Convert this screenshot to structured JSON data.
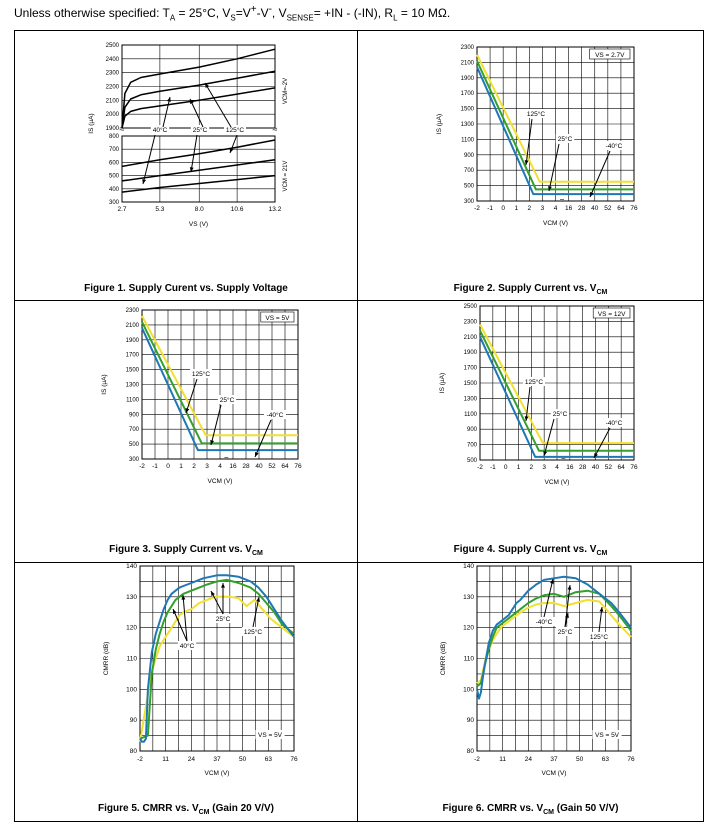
{
  "conditions": {
    "prefix": "Unless otherwise specified: T",
    "t_sub": "A",
    "t_val": " = 25°C, V",
    "s_sub": "S",
    "s_val": "=V",
    "vp": "+",
    "vm_sep": "-V",
    "vn": "-",
    "sense_sep": ", V",
    "sense_sub": "SENSE",
    "sense_val": "= +IN - (-IN), R",
    "r_sub": "L",
    "r_val": " = 10 MΩ."
  },
  "colors": {
    "blue": "#1f77b4",
    "green": "#33a02c",
    "yellow": "#f2e030",
    "black": "#000000",
    "grid": "#000000"
  },
  "figures": [
    {
      "id": "fig1",
      "caption": "Figure 1. Supply Curent vs. Supply Voltage",
      "caption_sub": ""
    },
    {
      "id": "fig2",
      "caption": "Figure 2. Supply Current vs. V",
      "caption_sub": "CM"
    },
    {
      "id": "fig3",
      "caption": "Figure 3. Supply Current vs. V",
      "caption_sub": "CM"
    },
    {
      "id": "fig4",
      "caption": "Figure 4. Supply Current vs. V",
      "caption_sub": "CM"
    },
    {
      "id": "fig5",
      "caption": "Figure 5.  CMRR vs. V",
      "caption_sub": "CM",
      "caption_tail": " (Gain 20 V/V)"
    },
    {
      "id": "fig6",
      "caption": "Figure 6. CMRR vs. V",
      "caption_sub": "CM",
      "caption_tail": " (Gain 50 V/V)"
    }
  ],
  "chart_data": [
    {
      "type": "line",
      "title": "Figure 1. Supply Curent vs. Supply Voltage",
      "xlabel": "VS (V)",
      "ylabel": "IS (µA)",
      "x_ticks": [
        "2.7",
        "5.3",
        "8.0",
        "10.6",
        "13.2"
      ],
      "xlim": [
        2.7,
        13.2
      ],
      "top_yticks": [
        "2500",
        "2400",
        "2300",
        "2200",
        "2100",
        "2000",
        "1900"
      ],
      "bottom_yticks": [
        "800",
        "700",
        "600",
        "500",
        "400",
        "300"
      ],
      "top_label": "VCM=-2V",
      "bottom_label": "VCM = 21V",
      "annotations": [
        "40°C",
        "25°C",
        "125°C"
      ],
      "series_top": [
        {
          "name": "125°C",
          "x": [
            2.7,
            2.9,
            3.3,
            4.0,
            5.3,
            8.0,
            10.6,
            13.2
          ],
          "y": [
            1900,
            2150,
            2230,
            2265,
            2290,
            2340,
            2400,
            2470
          ]
        },
        {
          "name": "25°C",
          "x": [
            2.7,
            2.9,
            3.3,
            4.0,
            5.3,
            8.0,
            10.6,
            13.2
          ],
          "y": [
            1900,
            2050,
            2110,
            2140,
            2165,
            2210,
            2260,
            2310
          ]
        },
        {
          "name": "40°C",
          "x": [
            2.7,
            2.9,
            3.3,
            4.0,
            5.3,
            8.0,
            10.6,
            13.2
          ],
          "y": [
            1900,
            1985,
            2020,
            2040,
            2060,
            2100,
            2145,
            2190
          ]
        }
      ],
      "series_bottom": [
        {
          "name": "125°C",
          "x": [
            2.7,
            5.3,
            8.0,
            10.6,
            13.2
          ],
          "y": [
            570,
            620,
            665,
            715,
            770
          ]
        },
        {
          "name": "25°C",
          "x": [
            2.7,
            5.3,
            8.0,
            10.6,
            13.2
          ],
          "y": [
            460,
            500,
            540,
            580,
            620
          ]
        },
        {
          "name": "40°C",
          "x": [
            2.7,
            5.3,
            8.0,
            10.6,
            13.2
          ],
          "y": [
            375,
            410,
            440,
            470,
            500
          ]
        }
      ]
    },
    {
      "type": "line",
      "title": "Figure 2. Supply Current vs. VCM",
      "xlabel": "VCM (V)",
      "ylabel": "IS (µA)",
      "legend": "VS = 2.7V",
      "x_ticks": [
        "-2",
        "-1",
        "0",
        "1",
        "2",
        "3",
        "4",
        "16",
        "28",
        "40",
        "52",
        "64",
        "76"
      ],
      "y_ticks": [
        "2300",
        "2100",
        "1900",
        "1700",
        "1500",
        "1300",
        "1100",
        "900",
        "700",
        "500",
        "300"
      ],
      "ylim": [
        300,
        2300
      ],
      "annotations": [
        "125°C",
        "25°C",
        "-40°C"
      ],
      "series": [
        {
          "name": "125°C",
          "color": "yellow",
          "x": [
            -2,
            2.8,
            4,
            76
          ],
          "y": [
            2200,
            550,
            550,
            550
          ]
        },
        {
          "name": "25°C",
          "color": "green",
          "x": [
            -2,
            2.5,
            4,
            76
          ],
          "y": [
            2120,
            450,
            450,
            450
          ]
        },
        {
          "name": "-40°C",
          "color": "blue",
          "x": [
            -2,
            2.3,
            4,
            76
          ],
          "y": [
            2040,
            390,
            390,
            390
          ]
        }
      ]
    },
    {
      "type": "line",
      "title": "Figure 3. Supply Current vs. VCM",
      "xlabel": "VCM (V)",
      "ylabel": "IS (µA)",
      "legend": "VS = 5V",
      "x_ticks": [
        "-2",
        "-1",
        "0",
        "1",
        "2",
        "3",
        "4",
        "16",
        "28",
        "40",
        "52",
        "64",
        "76"
      ],
      "y_ticks": [
        "2300",
        "2100",
        "1900",
        "1700",
        "1500",
        "1300",
        "1100",
        "900",
        "700",
        "500",
        "300"
      ],
      "ylim": [
        300,
        2300
      ],
      "annotations": [
        "125°C",
        "25°C",
        "-40°C"
      ],
      "series": [
        {
          "name": "125°C",
          "color": "yellow",
          "x": [
            -2,
            2.9,
            4,
            76
          ],
          "y": [
            2220,
            620,
            620,
            620
          ]
        },
        {
          "name": "25°C",
          "color": "green",
          "x": [
            -2,
            2.6,
            4,
            76
          ],
          "y": [
            2140,
            510,
            510,
            510
          ]
        },
        {
          "name": "-40°C",
          "color": "blue",
          "x": [
            -2,
            2.3,
            4,
            76
          ],
          "y": [
            2060,
            420,
            420,
            420
          ]
        }
      ]
    },
    {
      "type": "line",
      "title": "Figure 4. Supply Current vs. VCM",
      "xlabel": "VCM (V)",
      "ylabel": "IS (µA)",
      "legend": "VS = 12V",
      "x_ticks": [
        "-2",
        "-1",
        "0",
        "1",
        "2",
        "3",
        "4",
        "16",
        "28",
        "40",
        "52",
        "64",
        "76"
      ],
      "y_ticks": [
        "2500",
        "2300",
        "2100",
        "1900",
        "1700",
        "1500",
        "1300",
        "1100",
        "900",
        "700",
        "500"
      ],
      "ylim": [
        500,
        2500
      ],
      "annotations": [
        "125°C",
        "25°C",
        "-40°C"
      ],
      "series": [
        {
          "name": "125°C",
          "color": "yellow",
          "x": [
            -2,
            2.9,
            4,
            76
          ],
          "y": [
            2260,
            720,
            720,
            720
          ]
        },
        {
          "name": "25°C",
          "color": "green",
          "x": [
            -2,
            2.6,
            4,
            76
          ],
          "y": [
            2180,
            620,
            620,
            620
          ]
        },
        {
          "name": "-40°C",
          "color": "blue",
          "x": [
            -2,
            2.3,
            4,
            76
          ],
          "y": [
            2100,
            540,
            540,
            540
          ]
        }
      ]
    },
    {
      "type": "line",
      "title": "Figure 5. CMRR vs. VCM (Gain 20 V/V)",
      "xlabel": "VCM (V)",
      "ylabel": "CMRR (dB)",
      "legend": "VS = 5V",
      "x_ticks": [
        "-2",
        "11",
        "24",
        "37",
        "50",
        "63",
        "76"
      ],
      "xlim": [
        -2,
        76
      ],
      "y_ticks": [
        "140",
        "130",
        "120",
        "110",
        "100",
        "90",
        "80"
      ],
      "ylim": [
        80,
        140
      ],
      "annotations": [
        "25°C",
        "125°C",
        "40°C"
      ],
      "series": [
        {
          "name": "-40°C",
          "color": "blue",
          "x": [
            -2,
            -1,
            0,
            1,
            2,
            4,
            6,
            8,
            10,
            12,
            14,
            16,
            18,
            20,
            24,
            30,
            37,
            42,
            48,
            54,
            58,
            62,
            66,
            70,
            76
          ],
          "y": [
            84,
            83,
            83,
            84,
            100,
            112,
            118,
            122,
            126,
            129,
            131,
            132,
            133,
            133.5,
            134.5,
            136,
            137,
            137,
            136.5,
            135,
            133,
            130,
            126,
            122,
            117
          ]
        },
        {
          "name": "25°C",
          "color": "green",
          "x": [
            -2,
            2,
            4,
            6,
            8,
            10,
            12,
            14,
            16,
            18,
            20,
            24,
            28,
            32,
            37,
            42,
            48,
            54,
            58,
            62,
            66,
            70,
            76
          ],
          "y": [
            84,
            85,
            105,
            113,
            118,
            122,
            125,
            127,
            129,
            130,
            131,
            132,
            133,
            134,
            135,
            135.5,
            134.5,
            133,
            131,
            128,
            125,
            121,
            118
          ]
        },
        {
          "name": "125°C",
          "color": "yellow",
          "x": [
            -2,
            4,
            6,
            8,
            10,
            12,
            14,
            16,
            18,
            20,
            24,
            28,
            32,
            36,
            40,
            44,
            48,
            52,
            56,
            60,
            64,
            68,
            72,
            76
          ],
          "y": [
            83,
            106,
            110,
            114,
            116,
            118,
            120,
            122,
            124,
            125,
            126,
            128,
            129,
            130,
            130,
            130,
            129.5,
            127,
            129,
            126,
            123,
            121,
            119,
            117
          ]
        }
      ]
    },
    {
      "type": "line",
      "title": "Figure 6. CMRR vs. VCM (Gain 50 V/V)",
      "xlabel": "VCM (V)",
      "ylabel": "CMRR (dB)",
      "legend": "VS = 5V",
      "x_ticks": [
        "-2",
        "11",
        "24",
        "37",
        "50",
        "63",
        "76"
      ],
      "xlim": [
        -2,
        76
      ],
      "y_ticks": [
        "140",
        "130",
        "120",
        "110",
        "100",
        "90",
        "80"
      ],
      "ylim": [
        80,
        140
      ],
      "annotations": [
        "-40°C",
        "25°C",
        "125°C"
      ],
      "series": [
        {
          "name": "-40°C",
          "color": "blue",
          "x": [
            -2,
            -1,
            0,
            1,
            2,
            4,
            6,
            8,
            10,
            12,
            14,
            16,
            18,
            20,
            24,
            28,
            32,
            37,
            42,
            48,
            54,
            60,
            66,
            70,
            76
          ],
          "y": [
            100,
            97,
            99,
            104,
            108,
            115,
            119,
            121,
            122,
            123,
            124,
            126,
            128,
            129,
            132,
            134,
            135.5,
            136,
            136.5,
            136,
            134,
            131,
            128,
            125,
            120
          ]
        },
        {
          "name": "25°C",
          "color": "green",
          "x": [
            -2,
            0,
            2,
            4,
            6,
            8,
            10,
            12,
            14,
            16,
            18,
            20,
            24,
            28,
            32,
            37,
            42,
            48,
            54,
            60,
            66,
            70,
            76
          ],
          "y": [
            101,
            102,
            108,
            113,
            117,
            120,
            121,
            122,
            123,
            124,
            125,
            126,
            128,
            129.5,
            130.5,
            131,
            130,
            131.5,
            132,
            131,
            127,
            124,
            119
          ]
        },
        {
          "name": "125°C",
          "color": "yellow",
          "x": [
            -2,
            0,
            2,
            4,
            6,
            8,
            10,
            12,
            14,
            16,
            18,
            20,
            24,
            28,
            32,
            37,
            42,
            48,
            54,
            60,
            66,
            70,
            76
          ],
          "y": [
            102,
            103,
            109,
            113,
            116,
            118,
            120,
            121,
            122,
            123,
            124,
            125,
            126.5,
            127.5,
            128,
            128,
            127,
            128,
            129,
            128.5,
            124,
            121,
            117
          ]
        }
      ]
    }
  ]
}
